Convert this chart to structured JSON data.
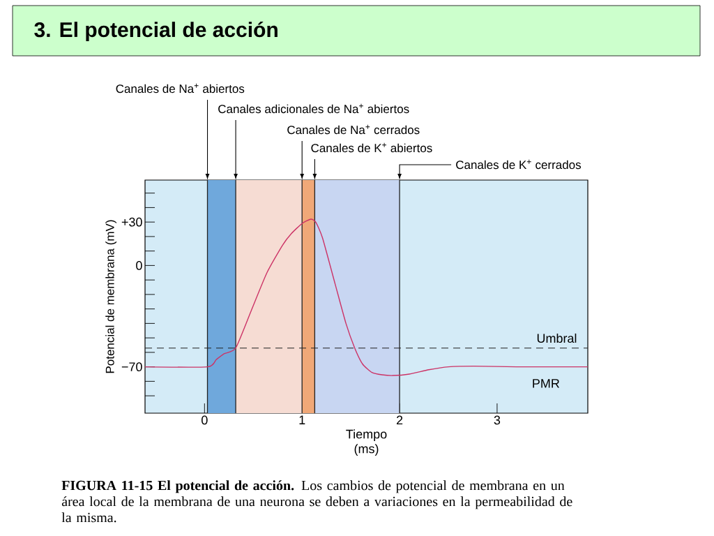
{
  "chart_data": {
    "type": "line",
    "title": "3. El potencial de acción",
    "xlabel": "Tiempo (ms)",
    "ylabel": "Potencial de membrana (mV)",
    "xlim": [
      -0.61,
      3.93
    ],
    "ylim": [
      -102,
      59
    ],
    "xticks": [
      0,
      1,
      2,
      3
    ],
    "yticks": [
      {
        "value": -90,
        "label": null
      },
      {
        "value": -80,
        "label": null
      },
      {
        "value": -70,
        "label": "−70"
      },
      {
        "value": -60,
        "label": null
      },
      {
        "value": -50,
        "label": null
      },
      {
        "value": -40,
        "label": null
      },
      {
        "value": -30,
        "label": null
      },
      {
        "value": -20,
        "label": null
      },
      {
        "value": -10,
        "label": null
      },
      0,
      {
        "value": 10,
        "label": null
      },
      {
        "value": 20,
        "label": null
      },
      {
        "value": 30,
        "label": "+30"
      },
      {
        "value": 40,
        "label": null
      },
      {
        "value": 50,
        "label": null
      }
    ],
    "x": [
      -0.61,
      0.03,
      0.12,
      0.2,
      0.32,
      0.48,
      0.64,
      0.8,
      0.89,
      1.0,
      1.09,
      1.14,
      1.21,
      1.34,
      1.45,
      1.54,
      1.62,
      1.72,
      1.82,
      1.93,
      2.1,
      2.3,
      2.5,
      2.76,
      3.2,
      3.93
    ],
    "series": [
      {
        "color": "#cc3366",
        "values": [
          -70,
          -70,
          -65,
          -61,
          -57,
          -31,
          -5,
          14,
          22,
          29,
          32,
          30,
          19,
          -13,
          -40,
          -57,
          -68,
          -74,
          -75.5,
          -76,
          -75,
          -72,
          -70,
          -69.5,
          -70,
          -70
        ]
      }
    ],
    "bands": [
      {
        "axis": "x",
        "from": 0.03,
        "to": 0.32,
        "color": "#6fa8dc"
      },
      {
        "axis": "x",
        "from": 0.32,
        "to": 1.0,
        "color": "#f6dcd3"
      },
      {
        "axis": "x",
        "from": 1.0,
        "to": 1.13,
        "color": "#f0a878"
      },
      {
        "axis": "x",
        "from": 1.13,
        "to": 2.0,
        "color": "#c8d6f2"
      }
    ],
    "ref_lines": [
      {
        "axis": "x",
        "value": 0.03,
        "label": "Canales de Na$^{+}$ abiertos",
        "color": "#222222"
      },
      {
        "axis": "x",
        "value": 0.32,
        "label": "Canales adicionales de Na$^{+}$ abiertos",
        "color": "#222222"
      },
      {
        "axis": "x",
        "value": 1.0,
        "label": "Canales de Na$^{+}$ cerrados",
        "color": "#222222"
      },
      {
        "axis": "x",
        "value": 1.13,
        "label": "Canales de K$^{+}$ abiertos",
        "color": "#222222"
      },
      {
        "axis": "x",
        "value": 2.0,
        "label": "Canales de K$^{+}$ cerrados",
        "color": "#222222"
      },
      {
        "axis": "y",
        "value": -57,
        "label": "Umbral",
        "color": "#222222",
        "line_style": "dashed"
      }
    ],
    "annotations": [
      {
        "text": "PMR",
        "x": 3.5,
        "y": -70
      },
      "**FIGURA 11-15 El potencial de acción.** Los cambios de potencial de membrana en un área local de la membrana de una neurona se deben a variaciones en la permeabilidad de la misma."
    ]
  }
}
